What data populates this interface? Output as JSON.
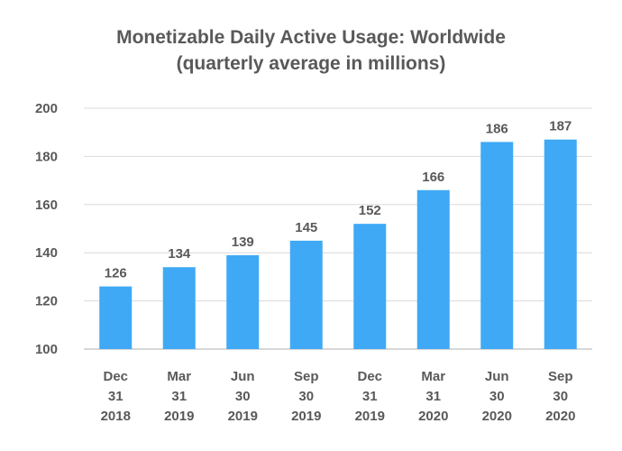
{
  "chart_data": {
    "type": "bar",
    "title": "Monetizable Daily Active Usage: Worldwide",
    "subtitle": "(quarterly average in millions)",
    "categories": [
      [
        "Dec",
        "31",
        "2018"
      ],
      [
        "Mar",
        "31",
        "2019"
      ],
      [
        "Jun",
        "30",
        "2019"
      ],
      [
        "Sep",
        "30",
        "2019"
      ],
      [
        "Dec",
        "31",
        "2019"
      ],
      [
        "Mar",
        "31",
        "2020"
      ],
      [
        "Jun",
        "30",
        "2020"
      ],
      [
        "Sep",
        "30",
        "2020"
      ]
    ],
    "values": [
      126,
      134,
      139,
      145,
      152,
      166,
      186,
      187
    ],
    "ylim": [
      100,
      200
    ],
    "yticks": [
      100,
      120,
      140,
      160,
      180,
      200
    ],
    "xlabel": "",
    "ylabel": "",
    "grid": true,
    "legend": "none",
    "bar_color": "#3fa9f5",
    "text_color": "#595959"
  }
}
